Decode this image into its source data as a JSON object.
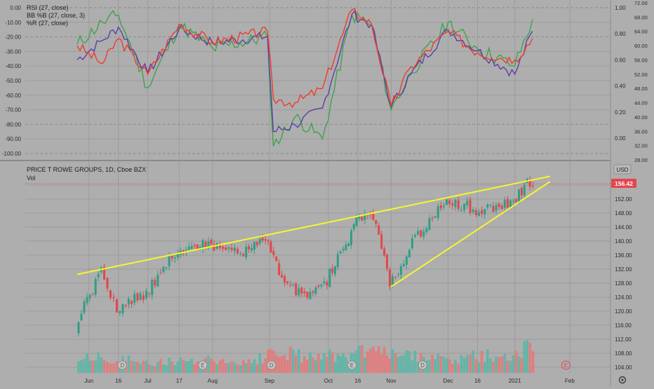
{
  "colors": {
    "background": "#aeaeae",
    "grid": "#9c9c9c",
    "axis_text": "#2b2b2b",
    "rsi": "#ef3b2c",
    "bb": "#5b3fa6",
    "williams_r": "#3fa34d",
    "candle_up": "#2e9e86",
    "candle_down": "#e2474b",
    "vol_up": "#5fb5a6",
    "vol_down": "#e37b7b",
    "trendline": "#f5f531",
    "price_tag": "#e2474b"
  },
  "oscillator_pane": {
    "legend": [
      "RSI (27, close)",
      "BB %B (27, close, 3)",
      "%R (27, close)"
    ],
    "left_ticks": [
      "0.00",
      "-10.00",
      "-20.00",
      "-30.00",
      "-40.00",
      "-50.00",
      "-60.00",
      "-70.00",
      "-80.00",
      "-90.00",
      "-100.00"
    ],
    "left_range": [
      0,
      -100
    ],
    "right_ticks_bb": [
      "1.00",
      "0.80",
      "0.60",
      "0.40",
      "0.20",
      "0.00"
    ],
    "right_ticks_rsi": [
      "72.00",
      "68.00",
      "64.00",
      "60.00",
      "56.00",
      "52.00",
      "48.00",
      "44.00",
      "40.00",
      "36.00",
      "32.00",
      "28.00"
    ]
  },
  "price_pane": {
    "title": "PRICE T ROWE GROUPS, 1D, Cboe BZX",
    "sub": "Vol",
    "currency": "USD",
    "last_price": "156.42",
    "price_ticks": [
      "156.00",
      "152.00",
      "148.00",
      "144.00",
      "140.00",
      "136.00",
      "132.00",
      "128.00",
      "124.00",
      "120.00",
      "116.00",
      "112.00",
      "108.00",
      "104.00"
    ]
  },
  "x_axis": {
    "labels": [
      "Jun",
      "16",
      "Jul",
      "17",
      "Aug",
      "Sep",
      "Oct",
      "16",
      "Nov",
      "Dec",
      "16",
      "2021",
      "Feb"
    ]
  },
  "chart_data": [
    {
      "type": "line",
      "title": "",
      "x": [
        "2020-05-26",
        "2020-06-08",
        "2020-06-16",
        "2020-07-01",
        "2020-07-17",
        "2020-08-03",
        "2020-08-31",
        "2020-09-03",
        "2020-09-14",
        "2020-09-28",
        "2020-10-13",
        "2020-10-23",
        "2020-11-02",
        "2020-11-12",
        "2020-12-01",
        "2020-12-16",
        "2021-01-04",
        "2021-01-13"
      ],
      "series": [
        {
          "name": "RSI (27, close)",
          "values": [
            60,
            55,
            62,
            52,
            66,
            61,
            64,
            45,
            44,
            48,
            70,
            66,
            43,
            54,
            64,
            58,
            56,
            62
          ]
        },
        {
          "name": "BB %B (27, close, 3)",
          "values": [
            0.6,
            0.75,
            0.85,
            0.5,
            0.84,
            0.73,
            0.78,
            0.05,
            0.1,
            0.23,
            0.95,
            0.87,
            0.24,
            0.49,
            0.83,
            0.67,
            0.49,
            0.82
          ]
        },
        {
          "name": "%R (27, close)",
          "values": [
            -25,
            -10,
            -5,
            -55,
            -12,
            -28,
            -20,
            -95,
            -75,
            -90,
            -5,
            -12,
            -70,
            -45,
            -10,
            -28,
            -40,
            -8
          ]
        }
      ],
      "left_axis_range": [
        -100,
        0
      ],
      "right_axis_range_bb": [
        0,
        1
      ],
      "right_axis_range_rsi": [
        28,
        72
      ]
    },
    {
      "type": "candlestick",
      "title": "PRICE T ROWE GROUPS, 1D, Cboe BZX",
      "x": [
        "2020-05-26",
        "2020-06-08",
        "2020-06-16",
        "2020-07-01",
        "2020-07-17",
        "2020-08-03",
        "2020-08-18",
        "2020-09-01",
        "2020-09-08",
        "2020-09-21",
        "2020-10-01",
        "2020-10-12",
        "2020-10-16",
        "2020-10-26",
        "2020-11-02",
        "2020-11-12",
        "2020-12-01",
        "2020-12-16",
        "2021-01-04",
        "2021-01-11",
        "2021-01-14"
      ],
      "close": [
        116,
        131,
        121,
        125,
        138,
        139,
        136,
        141,
        128,
        124,
        129,
        141,
        147,
        146,
        127,
        138,
        152,
        149,
        151,
        157,
        156.42
      ],
      "ylim": [
        102,
        160
      ],
      "volume": {
        "name": "Vol",
        "relative": [
          0.25,
          0.35,
          0.3,
          0.2,
          0.25,
          0.3,
          0.2,
          0.35,
          0.45,
          0.3,
          0.35,
          0.3,
          0.4,
          0.5,
          0.4,
          0.35,
          0.3,
          0.35,
          0.4,
          0.5,
          0.55
        ]
      },
      "trendlines": [
        {
          "from": {
            "x": "2020-05-26",
            "y": 130.5
          },
          "to": {
            "x": "2021-01-22",
            "y": 158.5
          }
        },
        {
          "from": {
            "x": "2020-11-02",
            "y": 127
          },
          "to": {
            "x": "2021-01-22",
            "y": 157
          }
        }
      ],
      "annotations": [
        "D",
        "E",
        "D",
        "E",
        "D",
        "E"
      ]
    }
  ]
}
